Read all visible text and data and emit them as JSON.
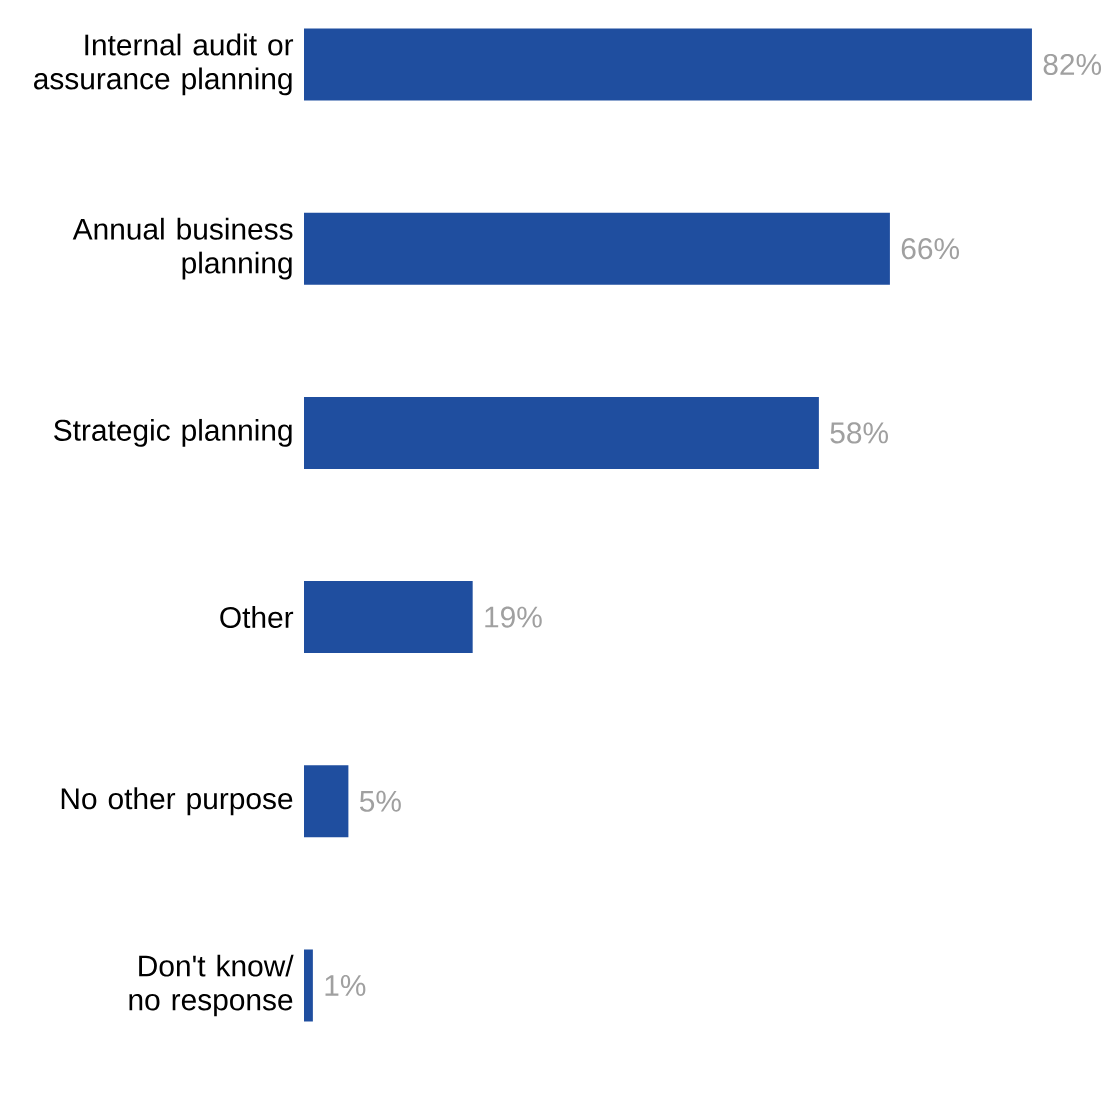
{
  "chart_data": {
    "type": "bar",
    "orientation": "horizontal",
    "categories": [
      "Internal audit or assurance planning",
      "Annual business planning",
      "Strategic planning",
      "Other",
      "No other purpose",
      "Don't know/ no response"
    ],
    "values": [
      82,
      66,
      58,
      19,
      5,
      1
    ],
    "value_labels": [
      "82%",
      "66%",
      "58%",
      "19%",
      "5%",
      "1%"
    ],
    "color": "#1f4e9f"
  }
}
